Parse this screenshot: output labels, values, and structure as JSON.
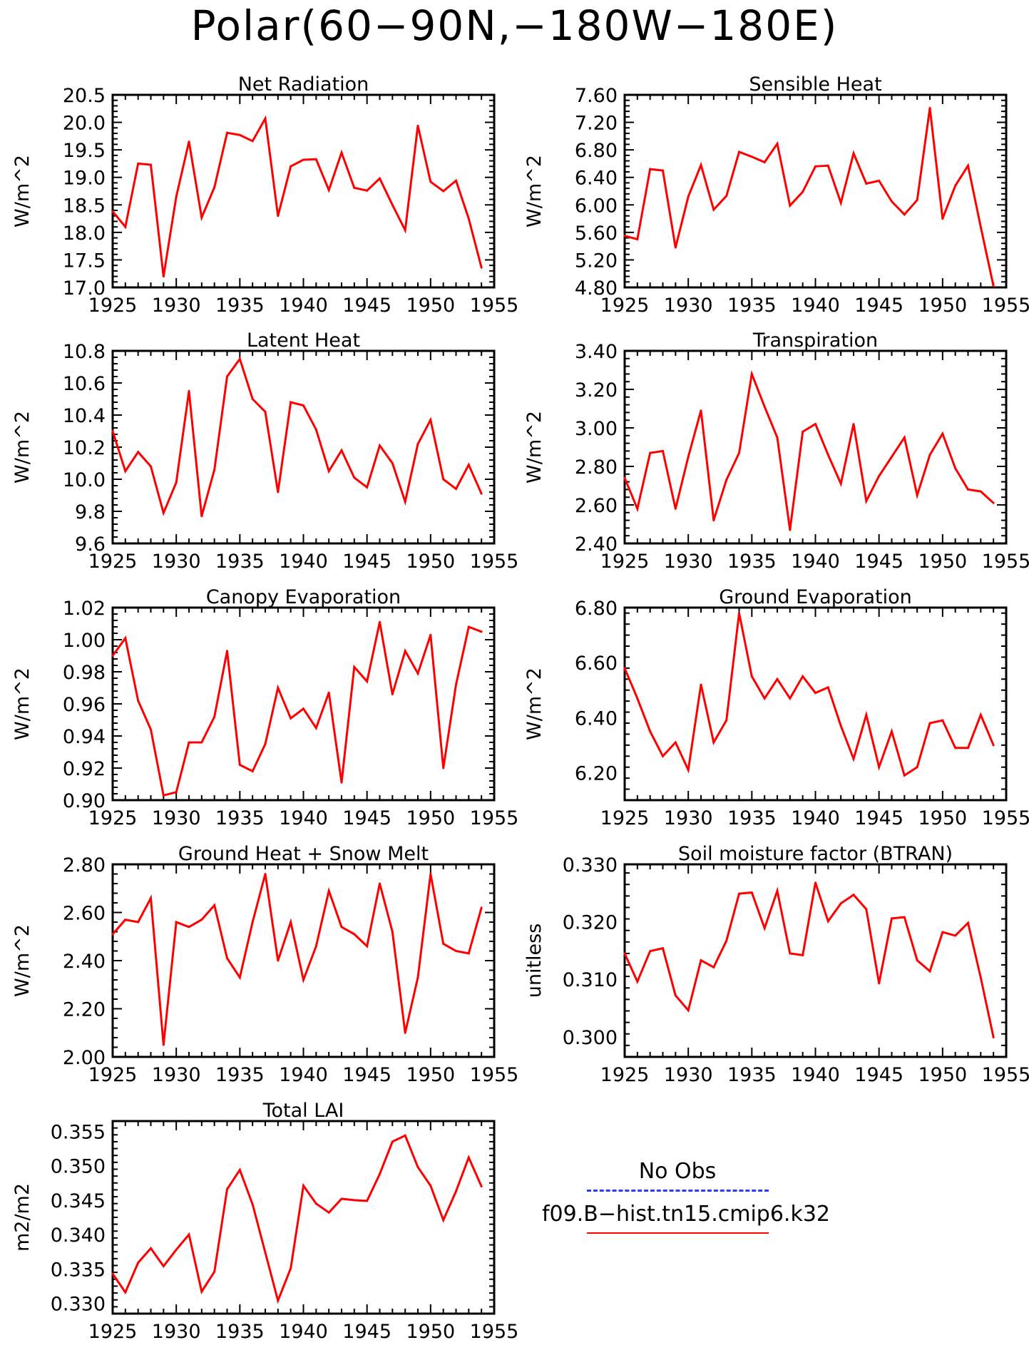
{
  "title": "Polar(60−90N,−180W−180E)",
  "legend": {
    "obs_label": "No Obs",
    "obs_color": "#2b3bff",
    "model_label": "f09.B−hist.tn15.cmip6.k32",
    "model_color": "#ff0000"
  },
  "chart_data": [
    {
      "type": "line",
      "title": "Net Radiation",
      "ylabel": "W/m^2",
      "xlabel": "",
      "xlim": [
        1925,
        1955
      ],
      "xticks": [
        "1925",
        "1930",
        "1935",
        "1940",
        "1945",
        "1950",
        "1955"
      ],
      "ylim": [
        17.0,
        20.5
      ],
      "yticks": [
        "17.0",
        "17.5",
        "18.0",
        "18.5",
        "19.0",
        "19.5",
        "20.0",
        "20.5"
      ],
      "x": [
        1925,
        1926,
        1927,
        1928,
        1929,
        1930,
        1931,
        1932,
        1933,
        1934,
        1935,
        1936,
        1937,
        1938,
        1939,
        1940,
        1941,
        1942,
        1943,
        1944,
        1945,
        1946,
        1947,
        1948,
        1949,
        1950,
        1951,
        1952,
        1953,
        1954
      ],
      "series": [
        {
          "color": "#ff0000",
          "values": [
            18.38,
            18.1,
            19.25,
            19.23,
            17.2,
            18.65,
            19.65,
            18.27,
            18.82,
            19.81,
            19.77,
            19.66,
            20.07,
            18.3,
            19.2,
            19.32,
            19.33,
            18.77,
            19.45,
            18.81,
            18.76,
            18.98,
            18.5,
            18.04,
            19.94,
            18.92,
            18.75,
            18.94,
            18.25,
            17.36
          ]
        }
      ]
    },
    {
      "type": "line",
      "title": "Sensible Heat",
      "ylabel": "W/m^2",
      "xlabel": "",
      "xlim": [
        1925,
        1955
      ],
      "xticks": [
        "1925",
        "1930",
        "1935",
        "1940",
        "1945",
        "1950",
        "1955"
      ],
      "ylim": [
        4.8,
        7.6
      ],
      "yticks": [
        "4.80",
        "5.20",
        "5.60",
        "6.00",
        "6.40",
        "6.80",
        "7.20",
        "7.60"
      ],
      "x": [
        1925,
        1926,
        1927,
        1928,
        1929,
        1930,
        1931,
        1932,
        1933,
        1934,
        1935,
        1936,
        1937,
        1938,
        1939,
        1940,
        1941,
        1942,
        1943,
        1944,
        1945,
        1946,
        1947,
        1948,
        1949,
        1950,
        1951,
        1952,
        1953,
        1954
      ],
      "series": [
        {
          "color": "#ff0000",
          "values": [
            5.55,
            5.5,
            6.52,
            6.5,
            5.38,
            6.12,
            6.58,
            5.93,
            6.13,
            6.77,
            6.7,
            6.62,
            6.89,
            5.99,
            6.19,
            6.56,
            6.57,
            6.03,
            6.75,
            6.31,
            6.35,
            6.05,
            5.86,
            6.07,
            7.41,
            5.8,
            6.28,
            6.57,
            5.68,
            4.82
          ]
        }
      ]
    },
    {
      "type": "line",
      "title": "Latent Heat",
      "ylabel": "W/m^2",
      "xlabel": "",
      "xlim": [
        1925,
        1955
      ],
      "xticks": [
        "1925",
        "1930",
        "1935",
        "1940",
        "1945",
        "1950",
        "1955"
      ],
      "ylim": [
        9.6,
        10.8
      ],
      "yticks": [
        "9.6",
        "9.8",
        "10.0",
        "10.2",
        "10.4",
        "10.6",
        "10.8"
      ],
      "x": [
        1925,
        1926,
        1927,
        1928,
        1929,
        1930,
        1931,
        1932,
        1933,
        1934,
        1935,
        1936,
        1937,
        1938,
        1939,
        1940,
        1941,
        1942,
        1943,
        1944,
        1945,
        1946,
        1947,
        1948,
        1949,
        1950,
        1951,
        1952,
        1953,
        1954
      ],
      "series": [
        {
          "color": "#ff0000",
          "values": [
            10.3,
            10.05,
            10.17,
            10.08,
            9.79,
            9.98,
            10.55,
            9.77,
            10.06,
            10.64,
            10.75,
            10.5,
            10.42,
            9.92,
            10.48,
            10.46,
            10.31,
            10.05,
            10.18,
            10.01,
            9.95,
            10.21,
            10.1,
            9.86,
            10.22,
            10.37,
            10.0,
            9.94,
            10.09,
            9.91
          ]
        }
      ]
    },
    {
      "type": "line",
      "title": "Transpiration",
      "ylabel": "W/m^2",
      "xlabel": "",
      "xlim": [
        1925,
        1955
      ],
      "xticks": [
        "1925",
        "1930",
        "1935",
        "1940",
        "1945",
        "1950",
        "1955"
      ],
      "ylim": [
        2.4,
        3.4
      ],
      "yticks": [
        "2.40",
        "2.60",
        "2.80",
        "3.00",
        "3.20",
        "3.40"
      ],
      "x": [
        1925,
        1926,
        1927,
        1928,
        1929,
        1930,
        1931,
        1932,
        1933,
        1934,
        1935,
        1936,
        1937,
        1938,
        1939,
        1940,
        1941,
        1942,
        1943,
        1944,
        1945,
        1946,
        1947,
        1948,
        1949,
        1950,
        1951,
        1952,
        1953,
        1954
      ],
      "series": [
        {
          "color": "#ff0000",
          "values": [
            2.74,
            2.58,
            2.87,
            2.88,
            2.58,
            2.85,
            3.09,
            2.52,
            2.73,
            2.87,
            3.28,
            3.11,
            2.95,
            2.47,
            2.98,
            3.02,
            2.86,
            2.71,
            3.02,
            2.62,
            2.75,
            2.85,
            2.95,
            2.65,
            2.86,
            2.97,
            2.79,
            2.68,
            2.67,
            2.61
          ]
        }
      ]
    },
    {
      "type": "line",
      "title": "Canopy Evaporation",
      "ylabel": "W/m^2",
      "xlabel": "",
      "xlim": [
        1925,
        1955
      ],
      "xticks": [
        "1925",
        "1930",
        "1935",
        "1940",
        "1945",
        "1950",
        "1955"
      ],
      "ylim": [
        0.9,
        1.02
      ],
      "yticks": [
        "0.90",
        "0.92",
        "0.94",
        "0.96",
        "0.98",
        "1.00",
        "1.02"
      ],
      "x": [
        1925,
        1926,
        1927,
        1928,
        1929,
        1930,
        1931,
        1932,
        1933,
        1934,
        1935,
        1936,
        1937,
        1938,
        1939,
        1940,
        1941,
        1942,
        1943,
        1944,
        1945,
        1946,
        1947,
        1948,
        1949,
        1950,
        1951,
        1952,
        1953,
        1954
      ],
      "series": [
        {
          "color": "#ff0000",
          "values": [
            0.99,
            1.001,
            0.962,
            0.944,
            0.903,
            0.905,
            0.936,
            0.936,
            0.952,
            0.993,
            0.922,
            0.918,
            0.935,
            0.97,
            0.951,
            0.957,
            0.945,
            0.967,
            0.911,
            0.983,
            0.974,
            1.011,
            0.966,
            0.993,
            0.979,
            1.003,
            0.92,
            0.972,
            1.008,
            1.005
          ]
        }
      ]
    },
    {
      "type": "line",
      "title": "Ground Evaporation",
      "ylabel": "W/m^2",
      "xlabel": "",
      "xlim": [
        1925,
        1955
      ],
      "xticks": [
        "1925",
        "1930",
        "1935",
        "1940",
        "1945",
        "1950",
        "1955"
      ],
      "ylim": [
        6.1,
        6.8
      ],
      "yticks": [
        "6.20",
        "6.40",
        "6.60",
        "6.80"
      ],
      "x": [
        1925,
        1926,
        1927,
        1928,
        1929,
        1930,
        1931,
        1932,
        1933,
        1934,
        1935,
        1936,
        1937,
        1938,
        1939,
        1940,
        1941,
        1942,
        1943,
        1944,
        1945,
        1946,
        1947,
        1948,
        1949,
        1950,
        1951,
        1952,
        1953,
        1954
      ],
      "series": [
        {
          "color": "#ff0000",
          "values": [
            6.58,
            6.47,
            6.35,
            6.26,
            6.31,
            6.21,
            6.52,
            6.31,
            6.39,
            6.78,
            6.55,
            6.47,
            6.54,
            6.47,
            6.55,
            6.49,
            6.51,
            6.37,
            6.25,
            6.41,
            6.22,
            6.35,
            6.19,
            6.22,
            6.38,
            6.39,
            6.29,
            6.29,
            6.41,
            6.3
          ]
        }
      ]
    },
    {
      "type": "line",
      "title": "Ground Heat + Snow Melt",
      "ylabel": "W/m^2",
      "xlabel": "",
      "xlim": [
        1925,
        1955
      ],
      "xticks": [
        "1925",
        "1930",
        "1935",
        "1940",
        "1945",
        "1950",
        "1955"
      ],
      "ylim": [
        2.0,
        2.8
      ],
      "yticks": [
        "2.00",
        "2.20",
        "2.40",
        "2.60",
        "2.80"
      ],
      "x": [
        1925,
        1926,
        1927,
        1928,
        1929,
        1930,
        1931,
        1932,
        1933,
        1934,
        1935,
        1936,
        1937,
        1938,
        1939,
        1940,
        1941,
        1942,
        1943,
        1944,
        1945,
        1946,
        1947,
        1948,
        1949,
        1950,
        1951,
        1952,
        1953,
        1954
      ],
      "series": [
        {
          "color": "#ff0000",
          "values": [
            2.51,
            2.57,
            2.56,
            2.66,
            2.05,
            2.56,
            2.54,
            2.57,
            2.63,
            2.41,
            2.33,
            2.56,
            2.76,
            2.4,
            2.56,
            2.32,
            2.46,
            2.69,
            2.54,
            2.51,
            2.46,
            2.72,
            2.52,
            2.1,
            2.33,
            2.76,
            2.47,
            2.44,
            2.43,
            2.62
          ]
        }
      ]
    },
    {
      "type": "line",
      "title": "Soil moisture factor (BTRAN)",
      "ylabel": "unitless",
      "xlabel": "",
      "xlim": [
        1925,
        1955
      ],
      "xticks": [
        "1925",
        "1930",
        "1935",
        "1940",
        "1945",
        "1950",
        "1955"
      ],
      "ylim": [
        0.2965,
        0.33
      ],
      "yticks": [
        "0.300",
        "0.310",
        "0.320",
        "0.330"
      ],
      "x": [
        1925,
        1926,
        1927,
        1928,
        1929,
        1930,
        1931,
        1932,
        1933,
        1934,
        1935,
        1936,
        1937,
        1938,
        1939,
        1940,
        1941,
        1942,
        1943,
        1944,
        1945,
        1946,
        1947,
        1948,
        1949,
        1950,
        1951,
        1952,
        1953,
        1954
      ],
      "series": [
        {
          "color": "#ff0000",
          "values": [
            0.3145,
            0.3096,
            0.3149,
            0.3154,
            0.3072,
            0.3046,
            0.3133,
            0.3121,
            0.3167,
            0.3249,
            0.3251,
            0.3189,
            0.3254,
            0.3145,
            0.3142,
            0.3268,
            0.3201,
            0.3232,
            0.3247,
            0.3222,
            0.3093,
            0.3206,
            0.3208,
            0.3133,
            0.3114,
            0.3182,
            0.3176,
            0.3198,
            0.3103,
            0.2999
          ]
        }
      ]
    },
    {
      "type": "line",
      "title": "Total LAI",
      "ylabel": "m2/m2",
      "xlabel": "",
      "xlim": [
        1925,
        1955
      ],
      "xticks": [
        "1925",
        "1930",
        "1935",
        "1940",
        "1945",
        "1950",
        "1955"
      ],
      "ylim": [
        0.3285,
        0.3565
      ],
      "yticks": [
        "0.330",
        "0.335",
        "0.340",
        "0.345",
        "0.350",
        "0.355"
      ],
      "x": [
        1925,
        1926,
        1927,
        1928,
        1929,
        1930,
        1931,
        1932,
        1933,
        1934,
        1935,
        1936,
        1937,
        1938,
        1939,
        1940,
        1941,
        1942,
        1943,
        1944,
        1945,
        1946,
        1947,
        1948,
        1949,
        1950,
        1951,
        1952,
        1953,
        1954
      ],
      "series": [
        {
          "color": "#ff0000",
          "values": [
            0.3343,
            0.3316,
            0.3359,
            0.338,
            0.3354,
            0.3378,
            0.34,
            0.3317,
            0.3346,
            0.3466,
            0.3494,
            0.3444,
            0.3374,
            0.3304,
            0.3351,
            0.3471,
            0.3445,
            0.3432,
            0.3452,
            0.345,
            0.3449,
            0.3488,
            0.3535,
            0.3544,
            0.3498,
            0.3471,
            0.3421,
            0.3463,
            0.3512,
            0.347
          ]
        }
      ]
    }
  ]
}
